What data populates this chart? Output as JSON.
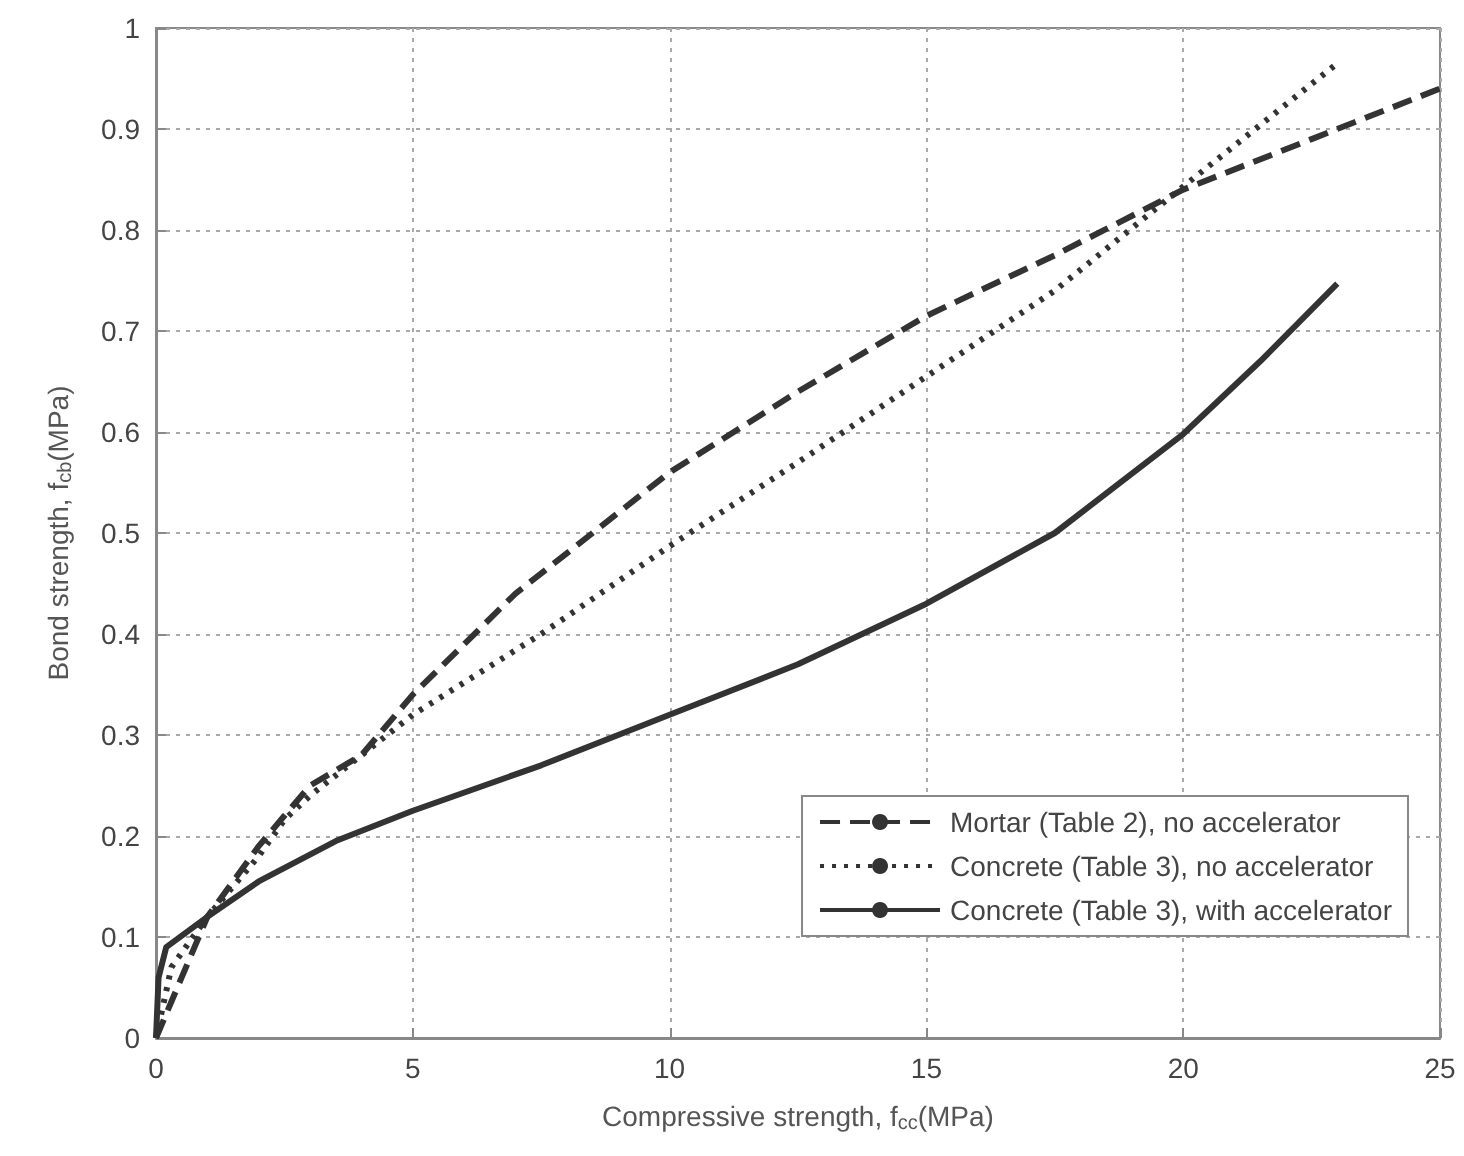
{
  "chart_data": {
    "type": "line",
    "xlabel": "Compressive strength, f$_{cc}$(MPa)",
    "ylabel": "Bond strength, f$_{cb}$(MPa)",
    "xlim": [
      0,
      25
    ],
    "xticks": [
      0,
      5,
      10,
      15,
      20,
      25
    ],
    "ylim": [
      0,
      1
    ],
    "yticks": [
      0,
      0.1,
      0.2,
      0.3,
      0.4,
      0.5,
      0.6,
      0.7,
      0.8,
      0.9,
      1
    ],
    "grid": true,
    "legend": "bottom right",
    "marker": "none",
    "series": [
      {
        "name": "Mortar (Table 2), no accelerator",
        "color": "#333333",
        "line_style": "dashed",
        "x": [
          0,
          0.5,
          1,
          2,
          2.5,
          3,
          4,
          5,
          7,
          10,
          12.5,
          15,
          17.5,
          20,
          22.5,
          25
        ],
        "values": [
          0,
          0.06,
          0.12,
          0.19,
          0.22,
          0.25,
          0.28,
          0.34,
          0.44,
          0.56,
          0.64,
          0.715,
          0.775,
          0.84,
          0.89,
          0.94
        ]
      },
      {
        "name": "Concrete (Table 3), no accelerator",
        "color": "#333333",
        "line_style": "dotted",
        "x": [
          0,
          0.3,
          1,
          2,
          2.5,
          3,
          5,
          7.5,
          10,
          12.5,
          15,
          17.5,
          20,
          23
        ],
        "values": [
          0,
          0.07,
          0.12,
          0.18,
          0.216,
          0.24,
          0.32,
          0.4,
          0.487,
          0.57,
          0.655,
          0.74,
          0.843,
          0.965
        ]
      },
      {
        "name": "Concrete (Table 3), with accelerator",
        "color": "#333333",
        "line_style": "solid",
        "x": [
          0,
          0.05,
          0.2,
          1,
          2,
          3.5,
          5,
          7.5,
          10,
          12.5,
          15,
          17.5,
          20,
          21.5,
          23
        ],
        "values": [
          0,
          0.06,
          0.09,
          0.12,
          0.155,
          0.195,
          0.225,
          0.27,
          0.32,
          0.37,
          0.43,
          0.5,
          0.598,
          0.67,
          0.747
        ]
      }
    ]
  }
}
